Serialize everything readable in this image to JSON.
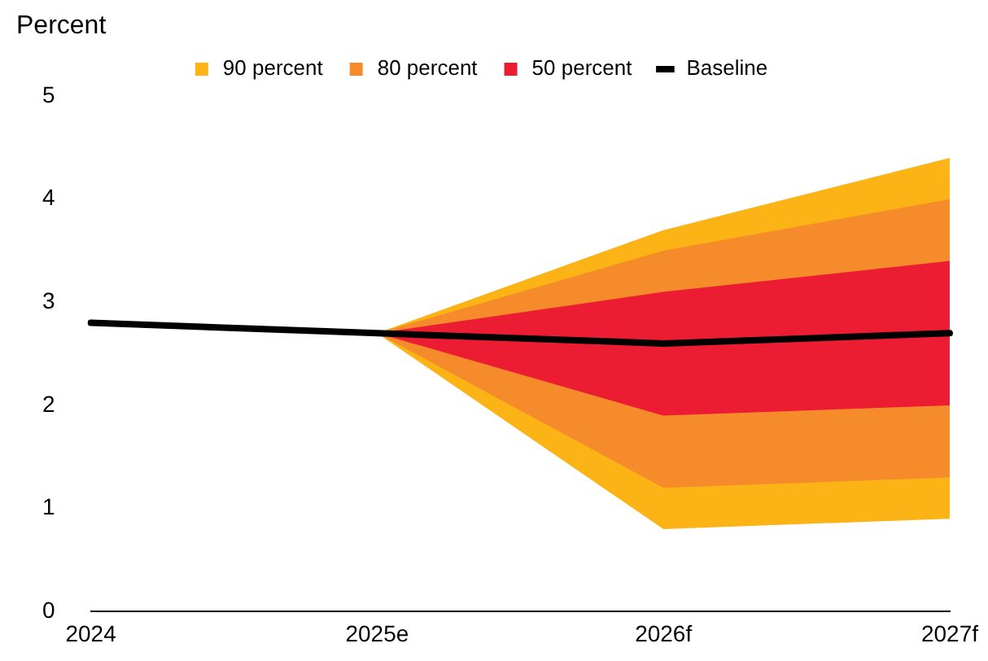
{
  "chart_data": {
    "type": "line",
    "ylabel": "Percent",
    "categories": [
      "2024",
      "2025e",
      "2026f",
      "2027f"
    ],
    "series": [
      {
        "name": "90 percent",
        "type": "line",
        "color": "#fcb316",
        "values": [
          null,
          null,
          null,
          null
        ],
        "lower": [
          null,
          2.7,
          0.8,
          0.9
        ],
        "upper": [
          null,
          2.7,
          3.7,
          4.4
        ]
      },
      {
        "name": "80 percent",
        "type": "line",
        "color": "#f68b2c",
        "values": [
          null,
          null,
          null,
          null
        ],
        "lower": [
          null,
          2.7,
          1.2,
          1.3
        ],
        "upper": [
          null,
          2.7,
          3.5,
          4.0
        ]
      },
      {
        "name": "50 percent",
        "type": "line",
        "color": "#ec1d32",
        "values": [
          null,
          null,
          null,
          null
        ],
        "lower": [
          null,
          2.7,
          1.9,
          2.0
        ],
        "upper": [
          null,
          2.7,
          3.1,
          3.4
        ]
      },
      {
        "name": "Baseline",
        "type": "line",
        "color": "#000000",
        "values": [
          2.8,
          2.7,
          2.6,
          2.7
        ]
      }
    ],
    "ylim": [
      0,
      5
    ],
    "yticks": [
      0,
      1,
      2,
      3,
      4,
      5
    ],
    "grid": false,
    "legend": "top",
    "marker": "none",
    "line_style": "solid"
  }
}
